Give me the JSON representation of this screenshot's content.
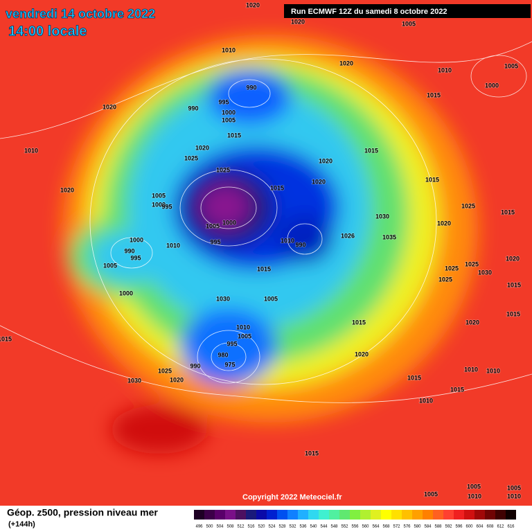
{
  "header": {
    "date": "vendredi 14 octobre 2022",
    "time": "14:00 locale",
    "run": "Run ECMWF 12Z du samedi 8 octobre 2022"
  },
  "footer": {
    "title": "Géop. z500, pression niveau mer",
    "lead": "(+144h)",
    "copyright": "Copyright 2022 Meteociel.fr"
  },
  "legend": [
    {
      "label": "496",
      "color": "#1e0024"
    },
    {
      "label": "500",
      "color": "#3c0048"
    },
    {
      "label": "504",
      "color": "#5a006a"
    },
    {
      "label": "508",
      "color": "#7a1088"
    },
    {
      "label": "512",
      "color": "#4c1060"
    },
    {
      "label": "516",
      "color": "#1a1a7a"
    },
    {
      "label": "520",
      "color": "#0a0aa8"
    },
    {
      "label": "524",
      "color": "#0020d0"
    },
    {
      "label": "528",
      "color": "#0050f0"
    },
    {
      "label": "532",
      "color": "#1080ff"
    },
    {
      "label": "536",
      "color": "#20b0ff"
    },
    {
      "label": "540",
      "color": "#30d8f0"
    },
    {
      "label": "544",
      "color": "#40f0d0"
    },
    {
      "label": "548",
      "color": "#50f0a0"
    },
    {
      "label": "552",
      "color": "#60e870"
    },
    {
      "label": "556",
      "color": "#80f040"
    },
    {
      "label": "560",
      "color": "#b0f030"
    },
    {
      "label": "564",
      "color": "#e0f020"
    },
    {
      "label": "568",
      "color": "#ffff00"
    },
    {
      "label": "572",
      "color": "#ffe000"
    },
    {
      "label": "576",
      "color": "#ffc000"
    },
    {
      "label": "580",
      "color": "#ffa000"
    },
    {
      "label": "584",
      "color": "#ff8000"
    },
    {
      "label": "588",
      "color": "#ff6020"
    },
    {
      "label": "592",
      "color": "#ff4030"
    },
    {
      "label": "596",
      "color": "#f02020"
    },
    {
      "label": "600",
      "color": "#d01010"
    },
    {
      "label": "604",
      "color": "#a00808"
    },
    {
      "label": "608",
      "color": "#700404"
    },
    {
      "label": "612",
      "color": "#400202"
    },
    {
      "label": "616",
      "color": "#100000"
    }
  ],
  "isobars": [
    "1020",
    "1020",
    "1005",
    "1010",
    "1020",
    "1010",
    "1005",
    "990",
    "1000",
    "1015",
    "1020",
    "990",
    "995",
    "1000",
    "1005",
    "1015",
    "1010",
    "1020",
    "1015",
    "1025",
    "1020",
    "1025",
    "1020",
    "1015",
    "1015",
    "1020",
    "1025",
    "1015",
    "1005",
    "1000",
    "995",
    "1030",
    "1020",
    "1005",
    "1000",
    "1026",
    "1035",
    "1010",
    "990",
    "1000",
    "990",
    "995",
    "1005",
    "1010",
    "995",
    "1015",
    "1025",
    "1025",
    "1030",
    "1025",
    "1020",
    "1015",
    "1000",
    "1030",
    "1005",
    "1010",
    "1005",
    "995",
    "1015",
    "1020",
    "1015",
    "980",
    "975",
    "1020",
    "1015",
    "990",
    "1025",
    "1020",
    "1030",
    "1015",
    "1010",
    "1010",
    "1015",
    "1010",
    "1015",
    "1005",
    "1005",
    "1005",
    "1010",
    "1010"
  ]
}
